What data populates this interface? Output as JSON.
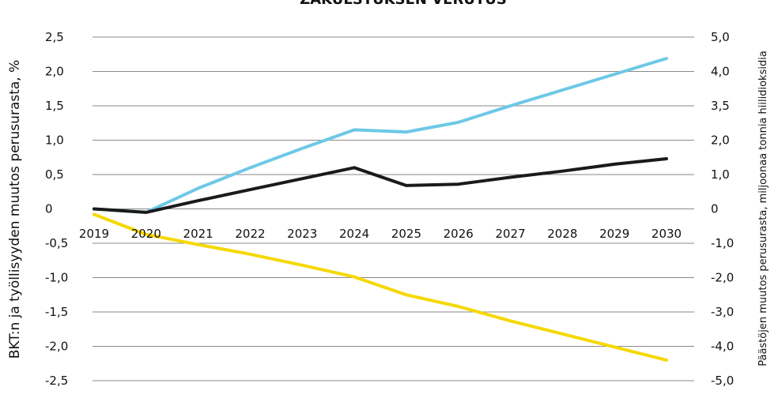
{
  "chart_data": {
    "type": "line",
    "title": "ZÄKULSTUKSEN VERUTUS",
    "ylabel": "BKT:n ja työllisyyden muutos perusurasta, %",
    "y2label": "Päästöjen muutos perusurasta, miljoonaa tonnia hiilidioksidia",
    "x": [
      "2019",
      "2020",
      "2021",
      "2022",
      "2023",
      "2024",
      "2025",
      "2026",
      "2027",
      "2028",
      "2029",
      "2030"
    ],
    "ylim": [
      -2.5,
      2.5
    ],
    "y2lim": [
      -5.0,
      5.0
    ],
    "yticks": [
      "2,5",
      "2,0",
      "1,5",
      "1,0",
      "0,5",
      "0",
      "-0,5",
      "-1,0",
      "-1,5",
      "-2,0",
      "-2,5"
    ],
    "y2ticks": [
      "5,0",
      "4,0",
      "3,5",
      "2,0",
      "1,0",
      "0",
      "-1,0",
      "-2,0",
      "-3,0",
      "-4,0",
      "-5,0"
    ],
    "grid": true,
    "series": [
      {
        "color": "#6ec8e6",
        "axis": "left",
        "values": [
          0,
          -0.05,
          0.3,
          0.6,
          0.88,
          1.15,
          1.12,
          1.26,
          1.5,
          1.73,
          1.96,
          2.19
        ]
      },
      {
        "color": "#1a1a1a",
        "axis": "left",
        "values": [
          0,
          -0.05,
          0.12,
          0.28,
          0.44,
          0.6,
          0.34,
          0.36,
          0.46,
          0.55,
          0.65,
          0.73
        ]
      },
      {
        "color": "#f5d800",
        "axis": "left",
        "values": [
          -0.08,
          -0.37,
          -0.52,
          -0.66,
          -0.82,
          -0.99,
          -1.25,
          -1.42,
          -1.63,
          -1.82,
          -2.01,
          -2.2
        ]
      }
    ]
  }
}
